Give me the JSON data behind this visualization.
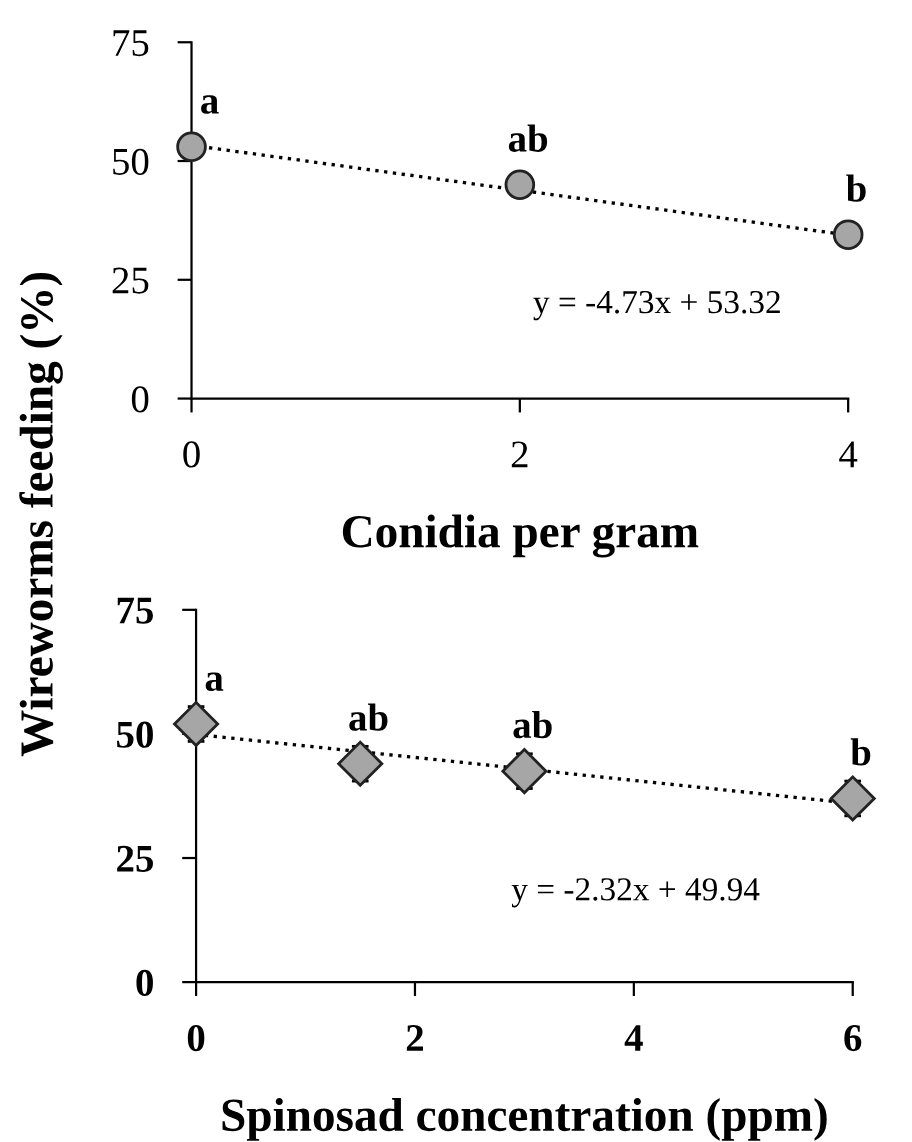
{
  "chart_data": [
    {
      "type": "scatter",
      "xlabel": "Conidia per gram",
      "ylabel": "Wireworms feeding (%)",
      "xlim": [
        0,
        4
      ],
      "xticks": [
        0,
        2,
        4
      ],
      "ylim": [
        0,
        75
      ],
      "yticks": [
        0,
        25,
        50,
        75
      ],
      "marker": "circle",
      "grid": false,
      "legend": false,
      "series": [
        {
          "color": "#a6a6a6",
          "x": [
            0,
            2,
            4
          ],
          "values": [
            53,
            45,
            34.5
          ]
        },
        {
          "type": "line",
          "color": "#000000",
          "line_style": "dotted",
          "marker": "none",
          "x": [
            0,
            4
          ],
          "values": [
            53.3,
            34.4
          ]
        }
      ],
      "annotations": [
        {
          "text": "a",
          "x": 0,
          "y": 53
        },
        {
          "text": "ab",
          "x": 2,
          "y": 45
        },
        {
          "text": "b",
          "x": 4,
          "y": 34.5
        },
        "y = -4.73x + 53.32"
      ]
    },
    {
      "type": "scatter",
      "xlabel": "Spinosad concentration (ppm)",
      "xlim": [
        0,
        6
      ],
      "xticks": [
        0,
        2,
        4,
        6
      ],
      "ylim": [
        0,
        75
      ],
      "yticks": [
        0,
        25,
        50,
        75
      ],
      "marker": "diamond",
      "grid": false,
      "legend": false,
      "series": [
        {
          "color": "#a6a6a6",
          "x": [
            0,
            1.5,
            3,
            6
          ],
          "values": [
            52,
            44,
            42.5,
            37
          ],
          "errors": [
            3.5,
            3.5,
            3.5,
            3.5
          ]
        },
        {
          "type": "line",
          "color": "#000000",
          "line_style": "dotted",
          "marker": "none",
          "x": [
            0,
            6
          ],
          "values": [
            49.9,
            36.0
          ]
        }
      ],
      "annotations": [
        {
          "text": "a",
          "x": 0,
          "y": 52
        },
        {
          "text": "ab",
          "x": 1.5,
          "y": 44
        },
        {
          "text": "ab",
          "x": 3,
          "y": 42.5
        },
        {
          "text": "b",
          "x": 6,
          "y": 37
        },
        "y = -2.32x + 49.94"
      ]
    }
  ]
}
